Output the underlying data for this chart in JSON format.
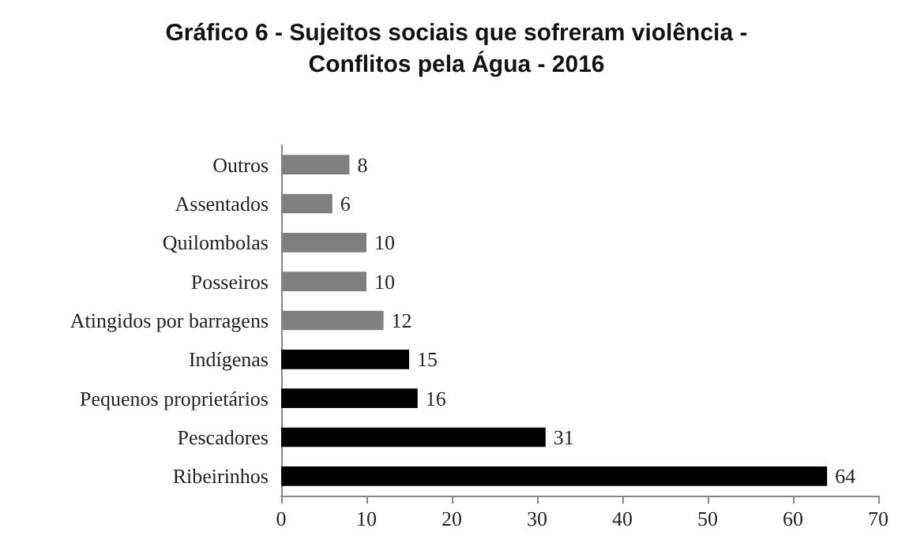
{
  "chart_data": {
    "type": "bar",
    "orientation": "horizontal",
    "title": "Gráfico 6 - Sujeitos sociais que sofreram violência -\nConflitos pela Água - 2016",
    "categories": [
      "Outros",
      "Assentados",
      "Quilombolas",
      "Posseiros",
      "Atingidos por barragens",
      "Indígenas",
      "Pequenos proprietários",
      "Pescadores",
      "Ribeirinhos"
    ],
    "values": [
      8,
      6,
      10,
      10,
      12,
      15,
      16,
      31,
      64
    ],
    "colors": [
      "#7f7f7f",
      "#7f7f7f",
      "#7f7f7f",
      "#7f7f7f",
      "#7f7f7f",
      "#000000",
      "#000000",
      "#000000",
      "#000000"
    ],
    "xlim": [
      0,
      70
    ],
    "xticks": [
      0,
      10,
      20,
      30,
      40,
      50,
      60,
      70
    ],
    "grid": false,
    "data_labels": true
  }
}
